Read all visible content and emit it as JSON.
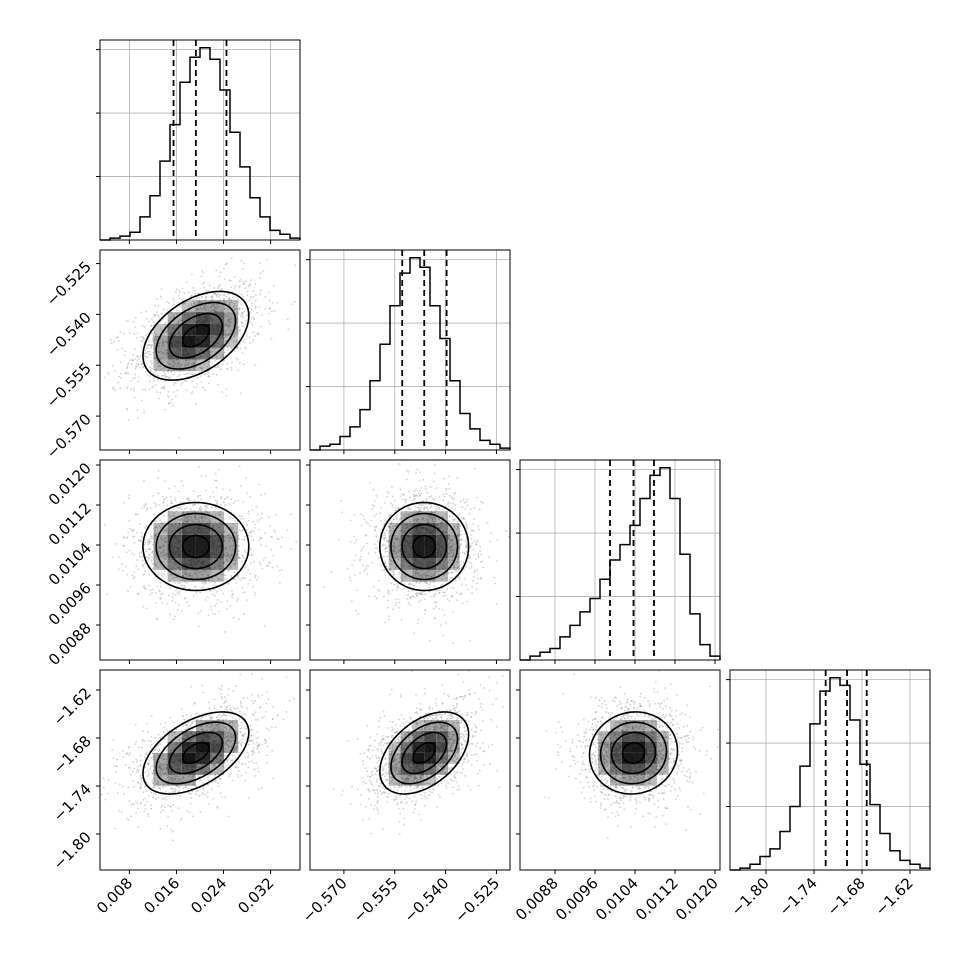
{
  "chart_data": {
    "type": "corner-plot",
    "n_params": 4,
    "grid": true,
    "parameters": [
      {
        "index": 0,
        "range": [
          0.003,
          0.037
        ],
        "ticks": [
          0.008,
          0.016,
          0.024,
          0.032
        ],
        "tick_labels": [
          "0.008",
          "0.016",
          "0.024",
          "0.032"
        ],
        "quantiles": [
          0.0155,
          0.0193,
          0.0245
        ],
        "histogram": [
          0,
          1,
          2,
          4,
          12,
          23,
          41,
          60,
          82,
          95,
          100,
          94,
          78,
          56,
          38,
          22,
          12,
          5,
          3,
          1
        ]
      },
      {
        "index": 1,
        "range": [
          -0.58,
          -0.521
        ],
        "ticks": [
          -0.57,
          -0.555,
          -0.54,
          -0.525
        ],
        "tick_labels": [
          "−0.570",
          "−0.555",
          "−0.540",
          "−0.525"
        ],
        "quantiles": [
          -0.5528,
          -0.5463,
          -0.5397
        ],
        "histogram": [
          0,
          2,
          3,
          7,
          12,
          21,
          36,
          55,
          75,
          92,
          100,
          95,
          75,
          58,
          36,
          19,
          11,
          5,
          3,
          1
        ]
      },
      {
        "index": 2,
        "range": [
          0.0081,
          0.0121
        ],
        "ticks": [
          0.0088,
          0.0096,
          0.0104,
          0.0112,
          0.012
        ],
        "tick_labels": [
          "0.0088",
          "0.0096",
          "0.0104",
          "0.0112",
          "0.0120"
        ],
        "quantiles": [
          0.0099,
          0.01037,
          0.01078
        ],
        "histogram": [
          0,
          2,
          4,
          6,
          12,
          18,
          25,
          32,
          42,
          52,
          60,
          70,
          84,
          96,
          100,
          84,
          55,
          24,
          8,
          2
        ]
      },
      {
        "index": 3,
        "range": [
          -1.845,
          -1.595
        ],
        "ticks": [
          -1.8,
          -1.74,
          -1.68,
          -1.62
        ],
        "tick_labels": [
          "−1.80",
          "−1.74",
          "−1.68",
          "−1.62"
        ],
        "quantiles": [
          -1.7254,
          -1.6987,
          -1.6741
        ],
        "histogram": [
          0,
          1,
          3,
          7,
          11,
          20,
          33,
          54,
          76,
          93,
          100,
          96,
          78,
          55,
          34,
          19,
          10,
          5,
          3,
          1
        ]
      }
    ],
    "correlations": [
      {
        "row": 1,
        "col": 0,
        "rho": 0.45
      },
      {
        "row": 2,
        "col": 0,
        "rho": 0.0
      },
      {
        "row": 2,
        "col": 1,
        "rho": 0.0
      },
      {
        "row": 3,
        "col": 0,
        "rho": 0.5
      },
      {
        "row": 3,
        "col": 1,
        "rho": 0.45
      },
      {
        "row": 3,
        "col": 2,
        "rho": 0.05
      }
    ],
    "contour_levels_sigma": [
      0.5,
      1.0,
      1.5,
      2.0
    ],
    "colors": {
      "lines": "#000000",
      "scatter": "#9a9a9a",
      "grid": "#b0b0b0",
      "density": "#000000"
    }
  }
}
